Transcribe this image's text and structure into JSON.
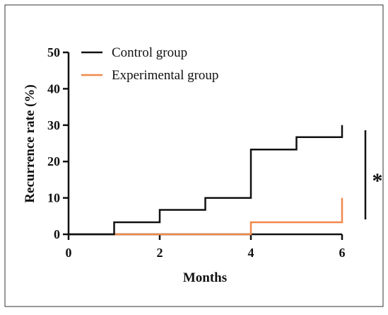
{
  "chart_data": {
    "type": "line",
    "step": true,
    "xlabel": "Months",
    "ylabel": "Recurrence rate (%)",
    "xlim": [
      0,
      6
    ],
    "ylim": [
      0,
      50
    ],
    "xticks": [
      0,
      2,
      4,
      6
    ],
    "yticks": [
      0,
      10,
      20,
      30,
      40,
      50
    ],
    "grid": false,
    "legend_position": "top-left",
    "series": [
      {
        "name": "Control group",
        "color": "#111111",
        "x": [
          0,
          1,
          2,
          3,
          4,
          5,
          6
        ],
        "y": [
          0,
          3.3,
          6.7,
          10,
          23.3,
          26.7,
          30
        ]
      },
      {
        "name": "Experimental group",
        "color": "#f0884a",
        "x": [
          1,
          4,
          6
        ],
        "y": [
          0,
          3.3,
          10
        ]
      }
    ],
    "annotations": [
      {
        "text": "*",
        "type": "significance-bracket"
      }
    ]
  }
}
